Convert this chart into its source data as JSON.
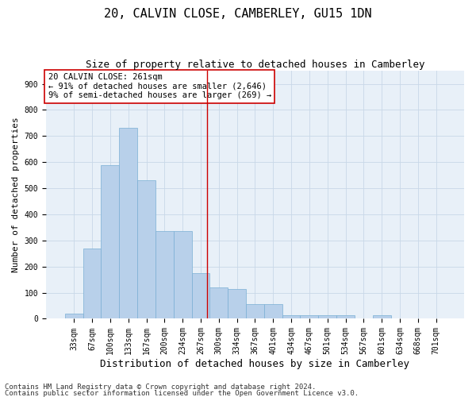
{
  "title": "20, CALVIN CLOSE, CAMBERLEY, GU15 1DN",
  "subtitle": "Size of property relative to detached houses in Camberley",
  "xlabel": "Distribution of detached houses by size in Camberley",
  "ylabel": "Number of detached properties",
  "bar_labels": [
    "33sqm",
    "67sqm",
    "100sqm",
    "133sqm",
    "167sqm",
    "200sqm",
    "234sqm",
    "267sqm",
    "300sqm",
    "334sqm",
    "367sqm",
    "401sqm",
    "434sqm",
    "467sqm",
    "501sqm",
    "534sqm",
    "567sqm",
    "601sqm",
    "634sqm",
    "668sqm",
    "701sqm"
  ],
  "bar_heights": [
    20,
    270,
    590,
    730,
    530,
    335,
    335,
    175,
    120,
    115,
    55,
    55,
    15,
    15,
    15,
    15,
    0,
    15,
    0,
    0,
    0
  ],
  "bar_color": "#b8d0ea",
  "bar_edge_color": "#7aafd4",
  "vline_x_idx": 7.35,
  "vline_color": "#cc0000",
  "annotation_line1": "20 CALVIN CLOSE: 261sqm",
  "annotation_line2": "← 91% of detached houses are smaller (2,646)",
  "annotation_line3": "9% of semi-detached houses are larger (269) →",
  "annotation_box_color": "#cc0000",
  "ylim": [
    0,
    950
  ],
  "yticks": [
    0,
    100,
    200,
    300,
    400,
    500,
    600,
    700,
    800,
    900
  ],
  "grid_color": "#c8d8e8",
  "bg_color": "#e8f0f8",
  "footer_line1": "Contains HM Land Registry data © Crown copyright and database right 2024.",
  "footer_line2": "Contains public sector information licensed under the Open Government Licence v3.0.",
  "title_fontsize": 11,
  "subtitle_fontsize": 9,
  "xlabel_fontsize": 9,
  "ylabel_fontsize": 8,
  "annot_fontsize": 7.5,
  "tick_fontsize": 7,
  "footer_fontsize": 6.5
}
